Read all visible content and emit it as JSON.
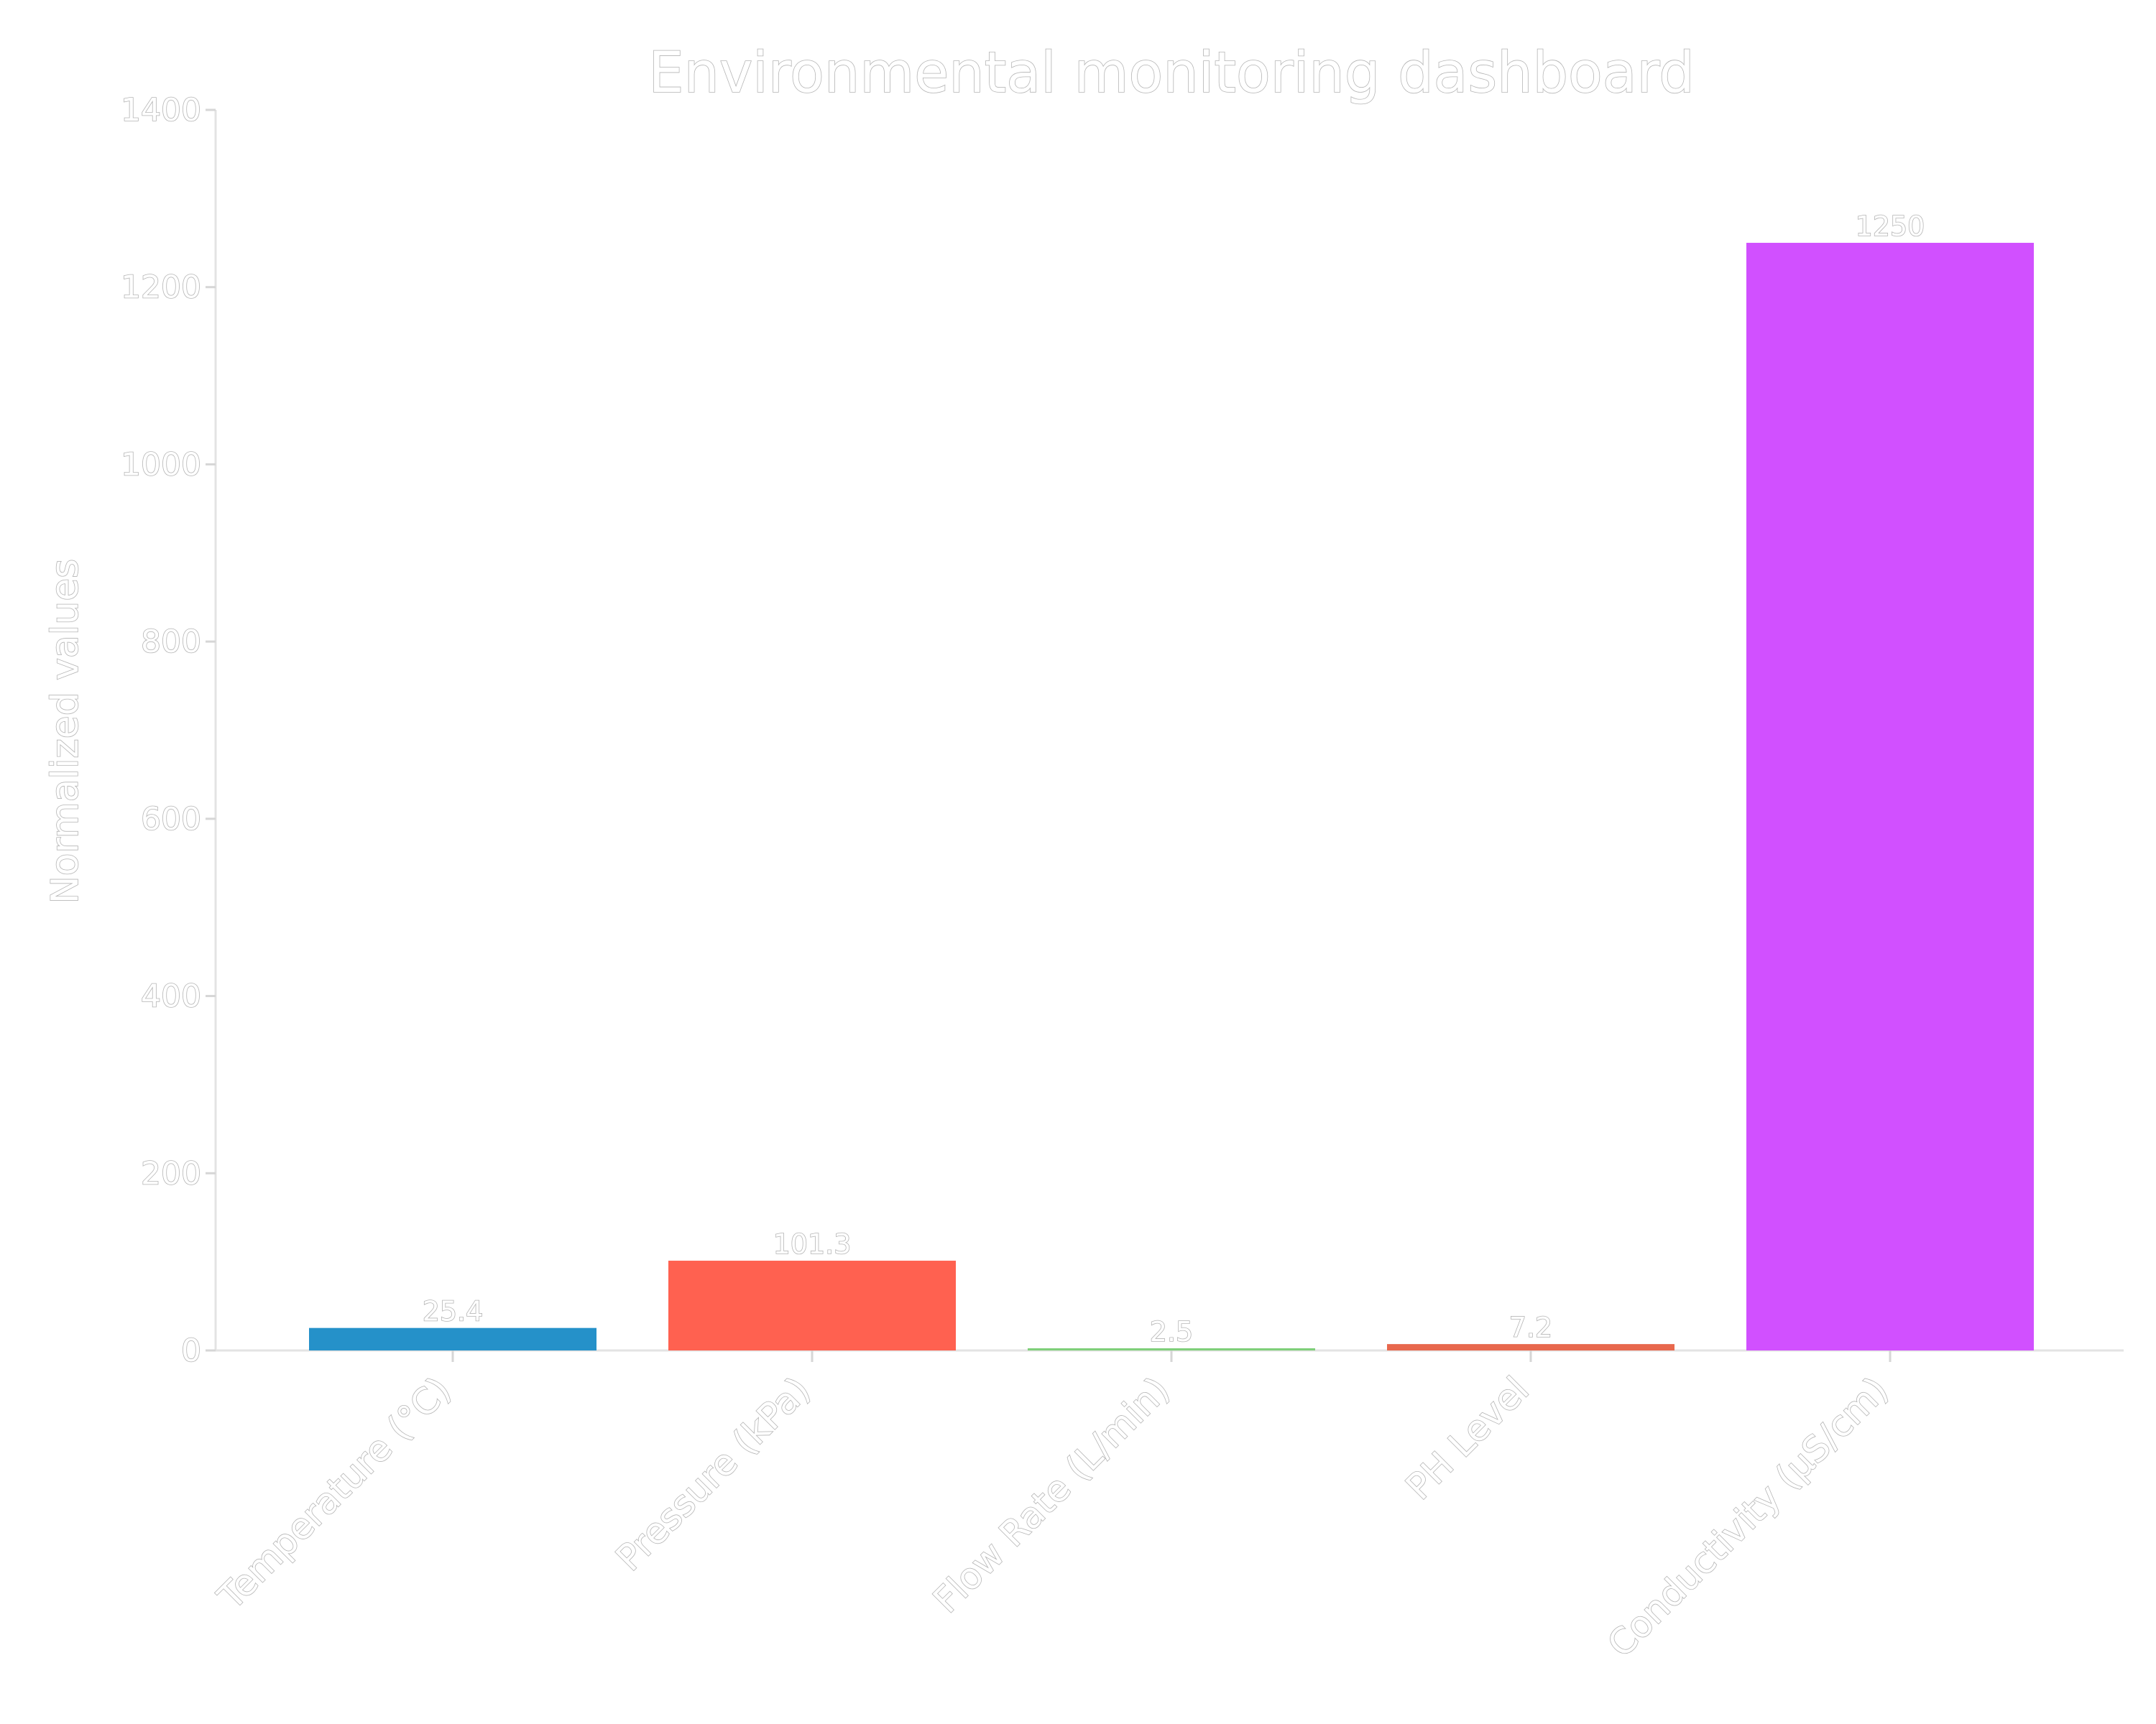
{
  "chart_data": {
    "type": "bar",
    "title": "Environmental monitoring dashboard",
    "xlabel": "",
    "ylabel": "Normalized values",
    "categories": [
      "Temperature (°C)",
      "Pressure (kPa)",
      "Flow Rate (L/min)",
      "PH Level",
      "Conductivity (µS/cm)"
    ],
    "values": [
      25.4,
      101.3,
      2.5,
      7.2,
      1250
    ],
    "value_labels": [
      "25.4",
      "101.3",
      "2.5",
      "7.2",
      "1250"
    ],
    "colors": [
      "#2591c9",
      "#ff6150",
      "#7fcf7a",
      "#e8684d",
      "#d150ff"
    ],
    "ylim": [
      0,
      1400
    ],
    "yticks": [
      0,
      200,
      400,
      600,
      800,
      1000,
      1200,
      1400
    ],
    "ytick_labels": [
      "0",
      "200",
      "400",
      "600",
      "800",
      "1000",
      "1200",
      "1400"
    ],
    "grid": false,
    "legend": "none"
  }
}
